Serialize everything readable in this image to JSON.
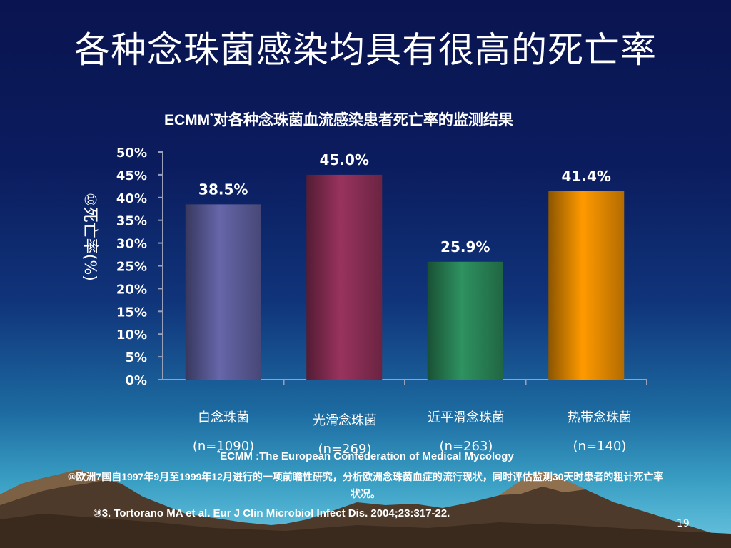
{
  "slide": {
    "title": "各种念珠菌感染均具有很高的死亡率",
    "page_number": "19"
  },
  "chart_data": {
    "type": "bar",
    "title": "对各种念珠菌血流感染患者死亡率的监测结果",
    "title_prefix": "ECMM",
    "title_marker": "*",
    "ylabel": "死亡率(%)",
    "ylabel_marker": "⑩",
    "ylim": [
      0,
      50
    ],
    "yticks": [
      "0%",
      "5%",
      "10%",
      "15%",
      "20%",
      "25%",
      "30%",
      "35%",
      "40%",
      "45%",
      "50%"
    ],
    "categories": [
      {
        "name": "白念珠菌",
        "n": "(n=1090)"
      },
      {
        "name": "光滑念珠菌",
        "n": "(n=269)"
      },
      {
        "name": "近平滑念珠菌",
        "n": "(n=263)"
      },
      {
        "name": "热带念珠菌",
        "n": "(n=140)"
      }
    ],
    "values": [
      38.5,
      45.0,
      25.9,
      41.4
    ],
    "value_labels": [
      "38.5%",
      "45.0%",
      "25.9%",
      "41.4%"
    ],
    "colors": [
      "#6666aa",
      "#99335e",
      "#2e9260",
      "#ff9a00"
    ]
  },
  "footnotes": {
    "marker": "*",
    "ecmm_definition": "ECMM :The European Confederation of Medical Mycology",
    "study_description": "⑩欧洲7国自1997年9月至1999年12月进行的一项前瞻性研究，分析欧洲念珠菌血症的流行现状，同时评估监测30天时患者的粗计死亡率状况。",
    "reference": "⑩3. Tortorano MA et al. Eur J Clin Microbiol Infect Dis. 2004;23:317-22."
  }
}
